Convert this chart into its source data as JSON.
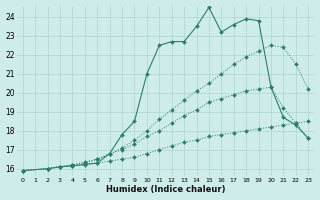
{
  "xlabel": "Humidex (Indice chaleur)",
  "bg_color": "#ceecea",
  "grid_color": "#aed4d0",
  "line_color": "#2e7d6e",
  "xlim": [
    -0.5,
    23.5
  ],
  "ylim": [
    15.6,
    24.6
  ],
  "yticks": [
    16,
    17,
    18,
    19,
    20,
    21,
    22,
    23,
    24
  ],
  "xticks": [
    0,
    1,
    2,
    3,
    4,
    5,
    6,
    7,
    8,
    9,
    10,
    11,
    12,
    13,
    14,
    15,
    16,
    17,
    18,
    19,
    20,
    21,
    22,
    23
  ],
  "series": [
    {
      "x": [
        0,
        2,
        3,
        4,
        5,
        6,
        7,
        8,
        9,
        10,
        11,
        12,
        13,
        14,
        15,
        16,
        17,
        18,
        19,
        20,
        21,
        22,
        23
      ],
      "y": [
        15.9,
        16.0,
        16.1,
        16.15,
        16.2,
        16.3,
        16.4,
        16.5,
        16.6,
        16.8,
        17.0,
        17.2,
        17.4,
        17.5,
        17.7,
        17.8,
        17.9,
        18.0,
        18.1,
        18.2,
        18.3,
        18.4,
        18.5
      ],
      "marker": true,
      "linestyle": "dotted"
    },
    {
      "x": [
        0,
        2,
        3,
        4,
        5,
        6,
        7,
        8,
        9,
        10,
        11,
        12,
        13,
        14,
        15,
        16,
        17,
        18,
        19,
        20,
        21,
        22,
        23
      ],
      "y": [
        15.9,
        16.0,
        16.1,
        16.2,
        16.3,
        16.5,
        16.8,
        17.0,
        17.3,
        17.7,
        18.0,
        18.4,
        18.8,
        19.1,
        19.5,
        19.7,
        19.9,
        20.1,
        20.2,
        20.3,
        19.2,
        18.4,
        17.6
      ],
      "marker": true,
      "linestyle": "dotted"
    },
    {
      "x": [
        0,
        2,
        3,
        4,
        5,
        6,
        7,
        8,
        9,
        10,
        11,
        12,
        13,
        14,
        15,
        16,
        17,
        18,
        19,
        20,
        21,
        22,
        23
      ],
      "y": [
        15.9,
        16.0,
        16.1,
        16.2,
        16.35,
        16.5,
        16.75,
        17.1,
        17.5,
        18.0,
        18.6,
        19.1,
        19.6,
        20.1,
        20.5,
        21.0,
        21.5,
        21.9,
        22.2,
        22.5,
        22.4,
        21.5,
        20.2
      ],
      "marker": true,
      "linestyle": "dotted"
    },
    {
      "x": [
        0,
        2,
        3,
        4,
        6,
        7,
        8,
        9,
        10,
        11,
        12,
        13,
        14,
        15,
        16,
        17,
        18,
        19,
        20,
        21,
        22,
        23
      ],
      "y": [
        15.9,
        16.0,
        16.1,
        16.15,
        16.3,
        16.8,
        17.8,
        18.5,
        21.0,
        22.5,
        22.7,
        22.7,
        23.5,
        24.5,
        23.2,
        23.6,
        23.9,
        23.8,
        20.3,
        18.7,
        18.3,
        17.6
      ],
      "marker": true,
      "linestyle": "solid"
    }
  ]
}
